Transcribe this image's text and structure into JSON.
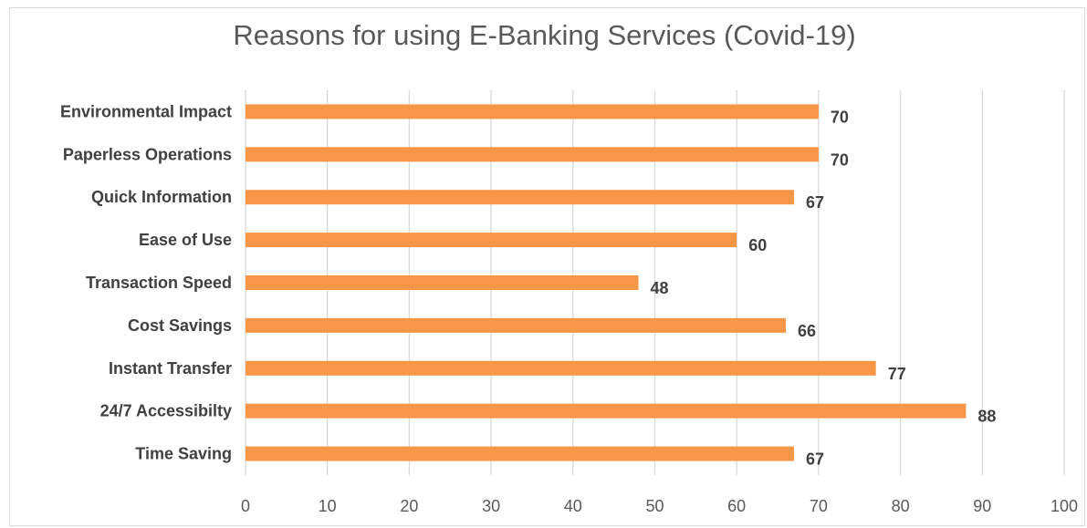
{
  "chart_data": {
    "type": "bar",
    "orientation": "horizontal",
    "title": "Reasons for using E-Banking Services (Covid-19)",
    "categories": [
      "Environmental Impact",
      "Paperless Operations",
      "Quick Information",
      "Ease of Use",
      "Transaction Speed",
      "Cost Savings",
      "Instant Transfer",
      "24/7 Accessibilty",
      "Time Saving"
    ],
    "values": [
      70,
      70,
      67,
      60,
      48,
      66,
      77,
      88,
      67
    ],
    "xlim": [
      0,
      100
    ],
    "xticks": [
      "0",
      "10",
      "20",
      "30",
      "40",
      "50",
      "60",
      "70",
      "80",
      "90",
      "100"
    ],
    "grid": "vertical",
    "data_labels": true,
    "bar_color": "#f79646"
  }
}
